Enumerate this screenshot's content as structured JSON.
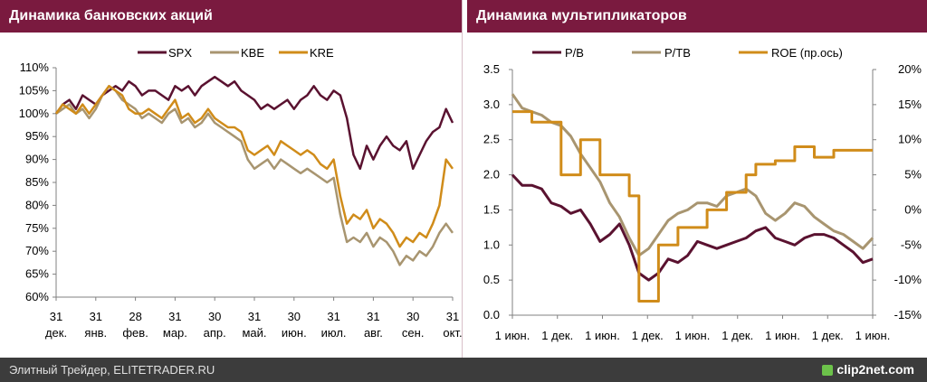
{
  "footer": {
    "credit": "Элитный Трейдер, ELITETRADER.RU",
    "brand": "clip2net.com"
  },
  "chart_data": [
    {
      "type": "line",
      "title": "Динамика банковских акций",
      "ylim": [
        60,
        110
      ],
      "yticks": [
        "60%",
        "65%",
        "70%",
        "75%",
        "80%",
        "85%",
        "90%",
        "95%",
        "100%",
        "105%",
        "110%"
      ],
      "x_ticks": [
        {
          "top": "31",
          "bottom": "дек."
        },
        {
          "top": "31",
          "bottom": "янв."
        },
        {
          "top": "28",
          "bottom": "фев."
        },
        {
          "top": "31",
          "bottom": "мар."
        },
        {
          "top": "30",
          "bottom": "апр."
        },
        {
          "top": "31",
          "bottom": "май."
        },
        {
          "top": "30",
          "bottom": "июн."
        },
        {
          "top": "31",
          "bottom": "июл."
        },
        {
          "top": "31",
          "bottom": "авг."
        },
        {
          "top": "30",
          "bottom": "сен."
        },
        {
          "top": "31",
          "bottom": "окт."
        }
      ],
      "series": [
        {
          "name": "SPX",
          "color": "#5a1230",
          "values": [
            100,
            102,
            103,
            101,
            104,
            103,
            102,
            104,
            105,
            106,
            105,
            107,
            106,
            104,
            105,
            105,
            104,
            103,
            106,
            105,
            106,
            104,
            106,
            107,
            108,
            107,
            106,
            107,
            105,
            104,
            103,
            101,
            102,
            101,
            102,
            103,
            101,
            103,
            104,
            106,
            104,
            103,
            105,
            104,
            99,
            91,
            88,
            93,
            90,
            93,
            95,
            93,
            92,
            94,
            88,
            91,
            94,
            96,
            97,
            101,
            98
          ]
        },
        {
          "name": "KBE",
          "color": "#a89570",
          "values": [
            100,
            101,
            102,
            100,
            101,
            99,
            101,
            104,
            106,
            105,
            103,
            102,
            101,
            99,
            100,
            99,
            98,
            100,
            101,
            98,
            99,
            97,
            98,
            100,
            98,
            97,
            96,
            95,
            94,
            90,
            88,
            89,
            90,
            88,
            90,
            89,
            88,
            87,
            88,
            87,
            86,
            85,
            86,
            78,
            72,
            73,
            72,
            74,
            71,
            73,
            72,
            70,
            67,
            69,
            68,
            70,
            69,
            71,
            74,
            76,
            74
          ]
        },
        {
          "name": "KRE",
          "color": "#d08c1a",
          "values": [
            100,
            102,
            101,
            100,
            102,
            100,
            102,
            104,
            106,
            105,
            104,
            101,
            100,
            100,
            101,
            100,
            99,
            101,
            103,
            99,
            100,
            98,
            99,
            101,
            99,
            98,
            97,
            97,
            96,
            92,
            91,
            92,
            93,
            91,
            94,
            93,
            92,
            91,
            92,
            91,
            89,
            88,
            90,
            82,
            76,
            78,
            77,
            79,
            75,
            77,
            76,
            74,
            71,
            73,
            72,
            74,
            73,
            76,
            80,
            90,
            88
          ]
        }
      ]
    },
    {
      "type": "line",
      "title": "Динамика мультипликаторов",
      "ylim": [
        0,
        3.5
      ],
      "y2lim": [
        -15,
        20
      ],
      "yticks": [
        "0.0",
        "0.5",
        "1.0",
        "1.5",
        "2.0",
        "2.5",
        "3.0",
        "3.5"
      ],
      "y2ticks": [
        "-15%",
        "-10%",
        "-5%",
        "0%",
        "5%",
        "10%",
        "15%",
        "20%"
      ],
      "x_labels": [
        "1 июн.",
        "1 дек.",
        "1 июн.",
        "1 дек.",
        "1 июн.",
        "1 дек.",
        "1 июн.",
        "1 дек.",
        "1 июн."
      ],
      "series": [
        {
          "name": "P/B",
          "axis": "left",
          "color": "#5a1230",
          "values": [
            2.0,
            1.85,
            1.85,
            1.8,
            1.6,
            1.55,
            1.45,
            1.5,
            1.3,
            1.05,
            1.15,
            1.3,
            1.0,
            0.6,
            0.5,
            0.6,
            0.8,
            0.75,
            0.85,
            1.05,
            1.0,
            0.95,
            1.0,
            1.05,
            1.1,
            1.2,
            1.25,
            1.1,
            1.05,
            1.0,
            1.1,
            1.15,
            1.15,
            1.1,
            1.0,
            0.9,
            0.75,
            0.8
          ]
        },
        {
          "name": "P/TB",
          "axis": "left",
          "color": "#a89570",
          "values": [
            3.15,
            2.95,
            2.9,
            2.85,
            2.75,
            2.7,
            2.55,
            2.3,
            2.1,
            1.9,
            1.6,
            1.4,
            1.1,
            0.85,
            0.95,
            1.15,
            1.35,
            1.45,
            1.5,
            1.6,
            1.6,
            1.55,
            1.7,
            1.75,
            1.8,
            1.7,
            1.45,
            1.35,
            1.45,
            1.6,
            1.55,
            1.4,
            1.3,
            1.2,
            1.15,
            1.05,
            0.95,
            1.1
          ]
        },
        {
          "name": "ROE (пр.ось)",
          "axis": "right",
          "color": "#d08c1a",
          "values": [
            14,
            14,
            12.5,
            12.5,
            12.5,
            5,
            5,
            10,
            10,
            5,
            5,
            5,
            2,
            -13,
            -13,
            -5,
            -5,
            -2.5,
            -2.5,
            -2.5,
            0,
            0,
            2.5,
            2.5,
            5,
            6.5,
            6.5,
            7,
            7,
            9,
            9,
            7.5,
            7.5,
            8.5,
            8.5,
            8.5,
            8.5,
            8.5
          ]
        }
      ]
    }
  ]
}
